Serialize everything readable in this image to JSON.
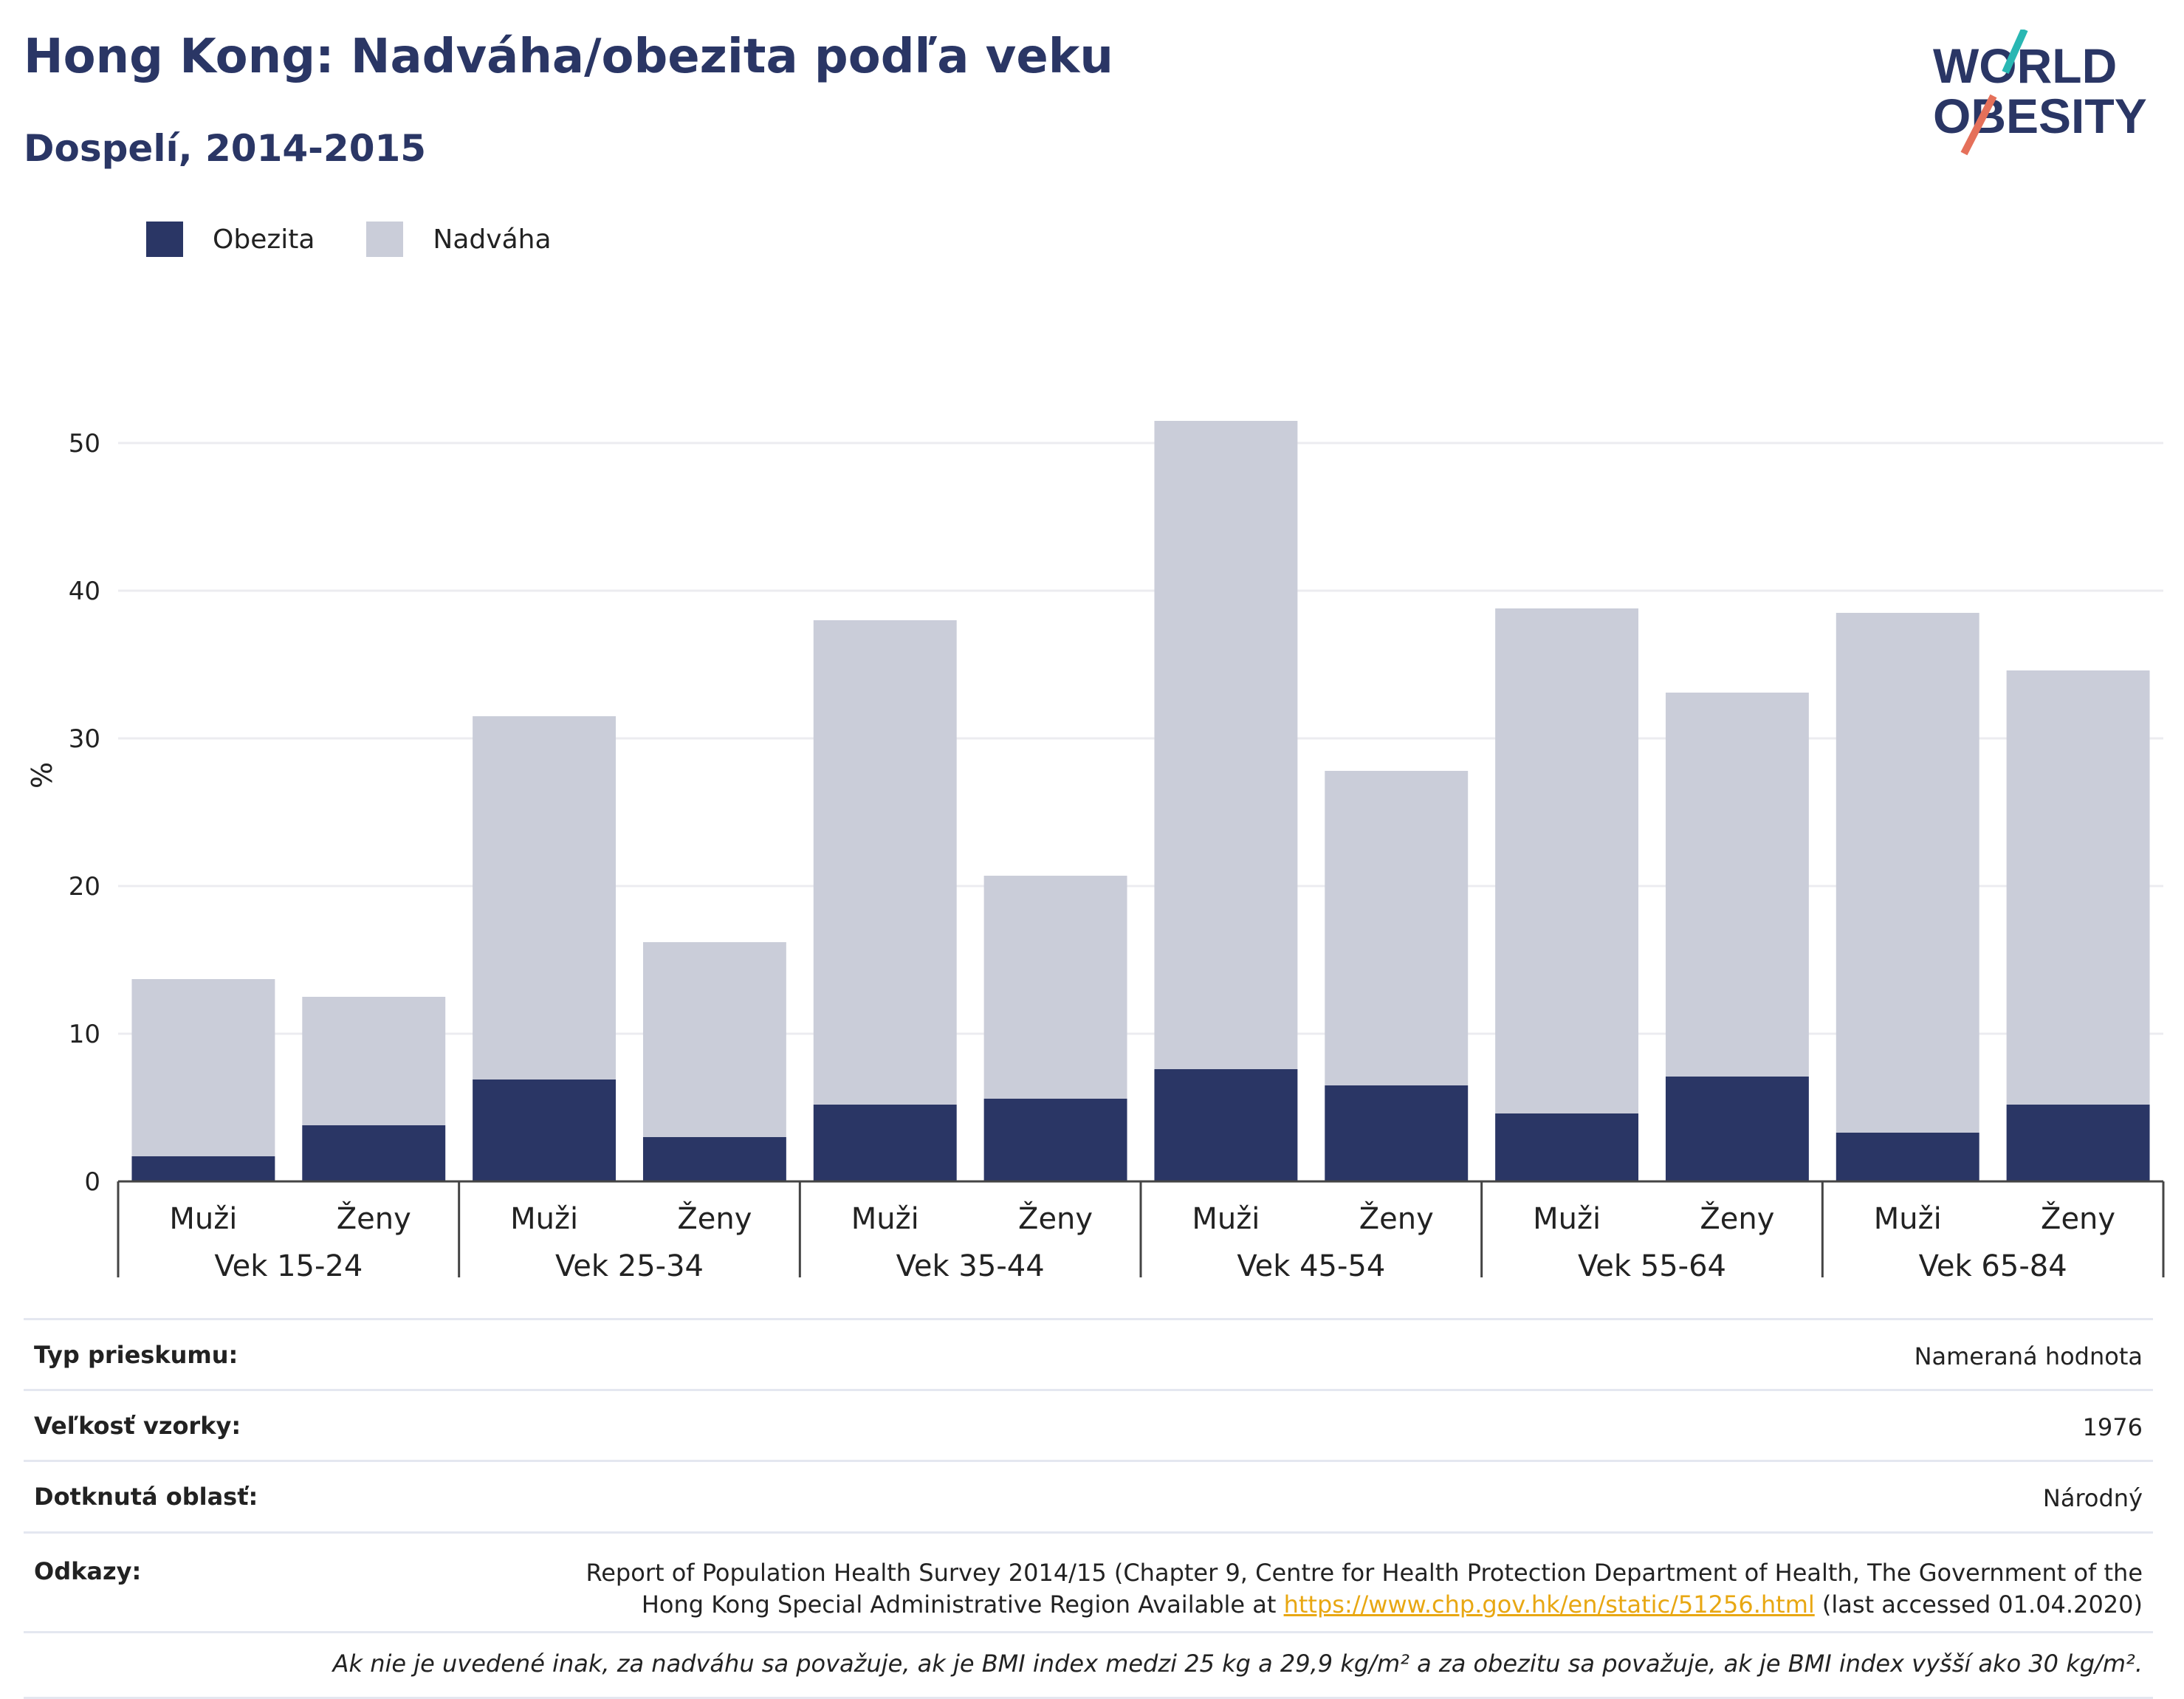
{
  "header": {
    "title": "Hong Kong: Nadváha/obezita podľa veku",
    "subtitle": "Dospelí, 2014-2015"
  },
  "logo": {
    "line1": "WORLD",
    "line2": "OBESITY",
    "colors": {
      "navy": "#2a3665",
      "teal": "#29b7b3",
      "coral": "#e5705a"
    }
  },
  "legend": {
    "items": [
      "Obezita",
      "Nadváha"
    ]
  },
  "chart_data": {
    "type": "bar",
    "stacked": true,
    "ylabel": "%",
    "ylim": [
      0,
      55
    ],
    "yticks": [
      0,
      10,
      20,
      30,
      40,
      50
    ],
    "grid": true,
    "legend_position": "top-left",
    "groups": [
      "Vek 15-24",
      "Vek 25-34",
      "Vek 35-44",
      "Vek 45-54",
      "Vek 55-64",
      "Vek 65-84"
    ],
    "subcategories": [
      "Muži",
      "Ženy"
    ],
    "series": [
      {
        "name": "Obezita",
        "color": "#2a3665",
        "values": [
          1.7,
          3.8,
          6.9,
          3.0,
          5.2,
          5.6,
          7.6,
          6.5,
          4.6,
          7.1,
          3.3,
          5.2
        ]
      },
      {
        "name": "Nadváha",
        "color": "#cacdd9",
        "values": [
          12.0,
          8.7,
          24.6,
          13.2,
          32.8,
          15.1,
          43.9,
          21.3,
          34.2,
          26.0,
          35.2,
          29.4
        ]
      }
    ]
  },
  "info": {
    "survey_type_label": "Typ prieskumu:",
    "survey_type_value": "Nameraná hodnota",
    "sample_size_label": "Veľkosť vzorky:",
    "sample_size_value": "1976",
    "area_label": "Dotknutá oblasť:",
    "area_value": "Národný",
    "references_label": "Odkazy:",
    "references_text_1": "Report of Population Health Survey 2014/15 (Chapter 9, Centre for Health Protection Department of Health, The Government of the Hong Kong Special Administrative Region Available at ",
    "references_link": "https://www.chp.gov.hk/en/static/51256.html",
    "references_text_2": " (last accessed 01.04.2020)",
    "note": "Ak nie je uvedené inak, za nadváhu sa považuje, ak je BMI index medzi 25 kg a 29,9 kg/m² a za obezitu sa považuje, ak je BMI index vyšší ako 30 kg/m²."
  }
}
